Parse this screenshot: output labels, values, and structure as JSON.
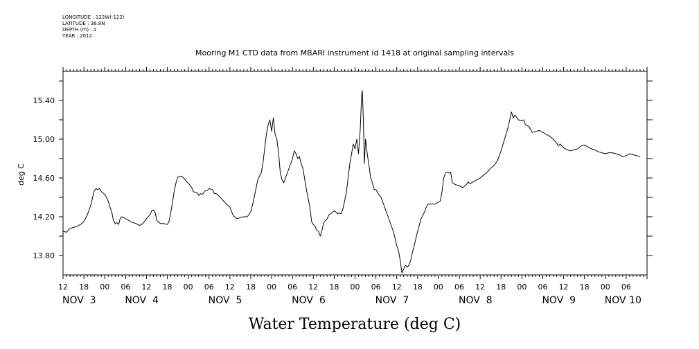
{
  "metadata": {
    "longitude": "LONGITUDE : 122W(-122)",
    "latitude": "LATITUDE : 36.8N",
    "depth": "DEPTH (m) : 1",
    "year": "YEAR : 2012"
  },
  "chart_data": {
    "type": "line",
    "title": "Mooring M1 CTD data from MBARI instrument id 1418 at original sampling intervals",
    "xlabel": "Water Temperature (deg C)",
    "ylabel": "deg C",
    "xlim": [
      0,
      168
    ],
    "ylim": [
      13.6,
      15.7
    ],
    "yticks": [
      13.8,
      14.2,
      14.6,
      15.0,
      15.4
    ],
    "ytick_labels": [
      "13.80",
      "14.20",
      "14.60",
      "15.00",
      "15.40"
    ],
    "x_unit": "hours since Nov 2 12:00 (2012)",
    "hour_ticks": [
      {
        "x": 0,
        "label": "12"
      },
      {
        "x": 6,
        "label": "18"
      },
      {
        "x": 12,
        "label": "00"
      },
      {
        "x": 18,
        "label": "06"
      },
      {
        "x": 24,
        "label": "12"
      },
      {
        "x": 30,
        "label": "18"
      },
      {
        "x": 36,
        "label": "00"
      },
      {
        "x": 42,
        "label": "06"
      },
      {
        "x": 48,
        "label": "12"
      },
      {
        "x": 54,
        "label": "18"
      },
      {
        "x": 60,
        "label": "00"
      },
      {
        "x": 66,
        "label": "06"
      },
      {
        "x": 72,
        "label": "12"
      },
      {
        "x": 78,
        "label": "18"
      },
      {
        "x": 84,
        "label": "00"
      },
      {
        "x": 90,
        "label": "06"
      },
      {
        "x": 96,
        "label": "12"
      },
      {
        "x": 102,
        "label": "18"
      },
      {
        "x": 108,
        "label": "00"
      },
      {
        "x": 114,
        "label": "06"
      },
      {
        "x": 120,
        "label": "12"
      },
      {
        "x": 126,
        "label": "18"
      },
      {
        "x": 132,
        "label": "00"
      },
      {
        "x": 138,
        "label": "06"
      },
      {
        "x": 144,
        "label": "12"
      },
      {
        "x": 150,
        "label": "18"
      },
      {
        "x": 156,
        "label": "00"
      },
      {
        "x": 162,
        "label": "06"
      }
    ],
    "day_labels": [
      {
        "x": 0,
        "label": "NOV  3"
      },
      {
        "x": 18,
        "label": "NOV  4"
      },
      {
        "x": 42,
        "label": "NOV  5"
      },
      {
        "x": 66,
        "label": "NOV  6"
      },
      {
        "x": 90,
        "label": "NOV  7"
      },
      {
        "x": 114,
        "label": "NOV  8"
      },
      {
        "x": 138,
        "label": "NOV  9"
      },
      {
        "x": 156,
        "label": "NOV 10"
      }
    ],
    "series": [
      {
        "color": "#000000",
        "points": [
          [
            0,
            14.05
          ],
          [
            1,
            14.04
          ],
          [
            2,
            14.08
          ],
          [
            3,
            14.09
          ],
          [
            4,
            14.1
          ],
          [
            5,
            14.12
          ],
          [
            6,
            14.15
          ],
          [
            7,
            14.22
          ],
          [
            8,
            14.32
          ],
          [
            8.5,
            14.4
          ],
          [
            9,
            14.47
          ],
          [
            9.5,
            14.49
          ],
          [
            10,
            14.48
          ],
          [
            10.5,
            14.49
          ],
          [
            11,
            14.46
          ],
          [
            12,
            14.43
          ],
          [
            12.5,
            14.4
          ],
          [
            13,
            14.36
          ],
          [
            13.5,
            14.3
          ],
          [
            14,
            14.25
          ],
          [
            14.5,
            14.16
          ],
          [
            15,
            14.13
          ],
          [
            15.5,
            14.14
          ],
          [
            16,
            14.12
          ],
          [
            16.5,
            14.19
          ],
          [
            17,
            14.2
          ],
          [
            18,
            14.18
          ],
          [
            19,
            14.16
          ],
          [
            20,
            14.14
          ],
          [
            21,
            14.13
          ],
          [
            22,
            14.11
          ],
          [
            23,
            14.13
          ],
          [
            24,
            14.18
          ],
          [
            25,
            14.22
          ],
          [
            25.5,
            14.26
          ],
          [
            26,
            14.27
          ],
          [
            26.5,
            14.24
          ],
          [
            27,
            14.16
          ],
          [
            28,
            14.13
          ],
          [
            29,
            14.13
          ],
          [
            30,
            14.12
          ],
          [
            30.5,
            14.15
          ],
          [
            31,
            14.25
          ],
          [
            31.5,
            14.35
          ],
          [
            32,
            14.47
          ],
          [
            32.5,
            14.55
          ],
          [
            33,
            14.61
          ],
          [
            34,
            14.62
          ],
          [
            35,
            14.59
          ],
          [
            35.5,
            14.56
          ],
          [
            36,
            14.55
          ],
          [
            37,
            14.5
          ],
          [
            37.5,
            14.46
          ],
          [
            38,
            14.45
          ],
          [
            38.5,
            14.45
          ],
          [
            39,
            14.42
          ],
          [
            39.5,
            14.44
          ],
          [
            40,
            14.43
          ],
          [
            41,
            14.47
          ],
          [
            41.5,
            14.47
          ],
          [
            42,
            14.49
          ],
          [
            43,
            14.48
          ],
          [
            43.5,
            14.44
          ],
          [
            44,
            14.44
          ],
          [
            45,
            14.41
          ],
          [
            46,
            14.37
          ],
          [
            47,
            14.33
          ],
          [
            48,
            14.3
          ],
          [
            48.5,
            14.25
          ],
          [
            49,
            14.21
          ],
          [
            50,
            14.18
          ],
          [
            51,
            14.19
          ],
          [
            52,
            14.2
          ],
          [
            53,
            14.2
          ],
          [
            54,
            14.25
          ],
          [
            55,
            14.4
          ],
          [
            56,
            14.58
          ],
          [
            56.5,
            14.62
          ],
          [
            57,
            14.65
          ],
          [
            57.5,
            14.75
          ],
          [
            58,
            14.9
          ],
          [
            58.5,
            15.05
          ],
          [
            59,
            15.15
          ],
          [
            59.5,
            15.2
          ],
          [
            60,
            15.08
          ],
          [
            60.5,
            15.22
          ],
          [
            61,
            15.05
          ],
          [
            61.5,
            15.0
          ],
          [
            62,
            14.86
          ],
          [
            62.5,
            14.65
          ],
          [
            63,
            14.58
          ],
          [
            63.5,
            14.55
          ],
          [
            64,
            14.6
          ],
          [
            65,
            14.7
          ],
          [
            65.5,
            14.75
          ],
          [
            66,
            14.8
          ],
          [
            66.5,
            14.88
          ],
          [
            67,
            14.85
          ],
          [
            67.5,
            14.8
          ],
          [
            68,
            14.82
          ],
          [
            68.5,
            14.75
          ],
          [
            69,
            14.7
          ],
          [
            70,
            14.48
          ],
          [
            71,
            14.3
          ],
          [
            71.5,
            14.15
          ],
          [
            72,
            14.12
          ],
          [
            72.5,
            14.1
          ],
          [
            73,
            14.06
          ],
          [
            73.5,
            14.05
          ],
          [
            74,
            14.0
          ],
          [
            74.5,
            14.06
          ],
          [
            75,
            14.14
          ],
          [
            76,
            14.18
          ],
          [
            76.5,
            14.22
          ],
          [
            77,
            14.23
          ],
          [
            78,
            14.26
          ],
          [
            78.5,
            14.25
          ],
          [
            79,
            14.23
          ],
          [
            79.5,
            14.24
          ],
          [
            80,
            14.23
          ],
          [
            80.5,
            14.28
          ],
          [
            81,
            14.36
          ],
          [
            81.5,
            14.45
          ],
          [
            82,
            14.6
          ],
          [
            82.5,
            14.75
          ],
          [
            83,
            14.85
          ],
          [
            83.5,
            14.95
          ],
          [
            84,
            14.9
          ],
          [
            84.5,
            15.0
          ],
          [
            85,
            14.85
          ],
          [
            85.5,
            15.1
          ],
          [
            85.9,
            15.45
          ],
          [
            86.1,
            15.5
          ],
          [
            86.4,
            15.2
          ],
          [
            86.7,
            14.75
          ],
          [
            87,
            15.0
          ],
          [
            87.5,
            14.85
          ],
          [
            88,
            14.73
          ],
          [
            88.5,
            14.6
          ],
          [
            89,
            14.55
          ],
          [
            89.5,
            14.48
          ],
          [
            90,
            14.48
          ],
          [
            90.5,
            14.45
          ],
          [
            91,
            14.42
          ],
          [
            91.5,
            14.4
          ],
          [
            92,
            14.35
          ],
          [
            92.5,
            14.3
          ],
          [
            93,
            14.25
          ],
          [
            93.5,
            14.2
          ],
          [
            94,
            14.15
          ],
          [
            94.5,
            14.1
          ],
          [
            95,
            14.05
          ],
          [
            95.5,
            13.98
          ],
          [
            96,
            13.9
          ],
          [
            96.5,
            13.85
          ],
          [
            97,
            13.75
          ],
          [
            97.5,
            13.62
          ],
          [
            98,
            13.66
          ],
          [
            98.5,
            13.7
          ],
          [
            99,
            13.68
          ],
          [
            99.5,
            13.7
          ],
          [
            100,
            13.75
          ],
          [
            100.5,
            13.83
          ],
          [
            101,
            13.9
          ],
          [
            102,
            14.05
          ],
          [
            103,
            14.18
          ],
          [
            104,
            14.25
          ],
          [
            104.5,
            14.3
          ],
          [
            105,
            14.33
          ],
          [
            106,
            14.33
          ],
          [
            107,
            14.33
          ],
          [
            108,
            14.35
          ],
          [
            108.5,
            14.36
          ],
          [
            109,
            14.45
          ],
          [
            109.5,
            14.6
          ],
          [
            110,
            14.65
          ],
          [
            110.5,
            14.66
          ],
          [
            111,
            14.65
          ],
          [
            111.5,
            14.66
          ],
          [
            112,
            14.55
          ],
          [
            113,
            14.53
          ],
          [
            114,
            14.52
          ],
          [
            115,
            14.5
          ],
          [
            116,
            14.53
          ],
          [
            116.5,
            14.56
          ],
          [
            117,
            14.54
          ],
          [
            118,
            14.56
          ],
          [
            119,
            14.58
          ],
          [
            120,
            14.6
          ],
          [
            121,
            14.63
          ],
          [
            122,
            14.66
          ],
          [
            123,
            14.7
          ],
          [
            124,
            14.73
          ],
          [
            125,
            14.78
          ],
          [
            126,
            14.88
          ],
          [
            127,
            15.0
          ],
          [
            128,
            15.12
          ],
          [
            128.5,
            15.2
          ],
          [
            129,
            15.28
          ],
          [
            129.5,
            15.22
          ],
          [
            130,
            15.25
          ],
          [
            131,
            15.2
          ],
          [
            132,
            15.19
          ],
          [
            132.5,
            15.2
          ],
          [
            133,
            15.15
          ],
          [
            134,
            15.13
          ],
          [
            134.5,
            15.1
          ],
          [
            135,
            15.07
          ],
          [
            136,
            15.08
          ],
          [
            137,
            15.09
          ],
          [
            138,
            15.07
          ],
          [
            139,
            15.05
          ],
          [
            140,
            15.03
          ],
          [
            141,
            15.0
          ],
          [
            142,
            14.96
          ],
          [
            142.5,
            14.93
          ],
          [
            143,
            14.95
          ],
          [
            144,
            14.91
          ],
          [
            145,
            14.89
          ],
          [
            146,
            14.88
          ],
          [
            147,
            14.89
          ],
          [
            148,
            14.9
          ],
          [
            149,
            14.93
          ],
          [
            150,
            14.94
          ],
          [
            151,
            14.92
          ],
          [
            152,
            14.9
          ],
          [
            153,
            14.89
          ],
          [
            154,
            14.87
          ],
          [
            155,
            14.86
          ],
          [
            156,
            14.85
          ],
          [
            157,
            14.86
          ],
          [
            158,
            14.86
          ],
          [
            159,
            14.85
          ],
          [
            160,
            14.84
          ],
          [
            161,
            14.82
          ],
          [
            162,
            14.83
          ],
          [
            163,
            14.85
          ],
          [
            164,
            14.84
          ],
          [
            165,
            14.83
          ],
          [
            166,
            14.82
          ]
        ]
      }
    ]
  }
}
